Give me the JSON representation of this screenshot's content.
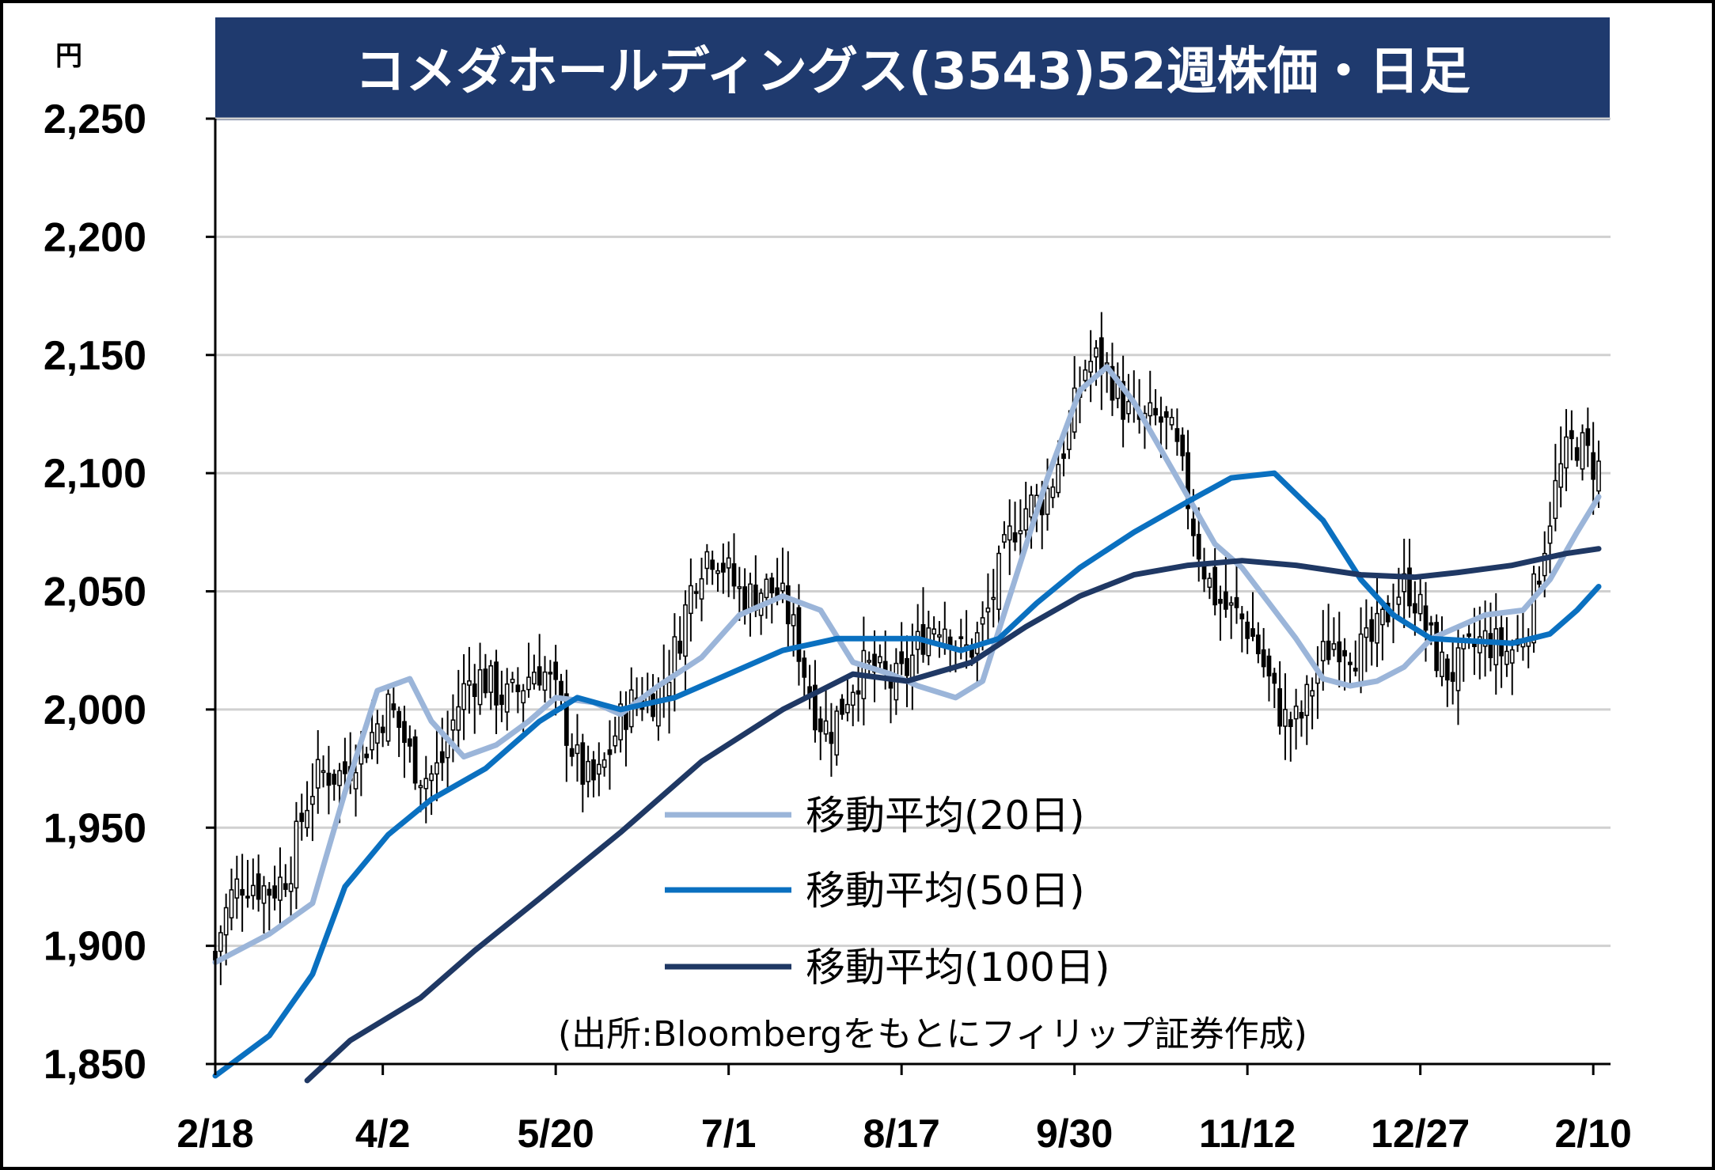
{
  "chart_data": {
    "type": "line",
    "title": "コメダホールディングス(3543)52週株価・日足",
    "unit_label": "円",
    "y_ticks": [
      "2,250",
      "2,200",
      "2,150",
      "2,100",
      "2,050",
      "2,000",
      "1,950",
      "1,900",
      "1,850"
    ],
    "y_tick_values": [
      2250,
      2200,
      2150,
      2100,
      2050,
      2000,
      1950,
      1900,
      1850
    ],
    "ylim": [
      1850,
      2250
    ],
    "x_ticks": [
      "2/18",
      "4/2",
      "5/20",
      "7/1",
      "8/17",
      "9/30",
      "11/12",
      "12/27",
      "2/10"
    ],
    "x_tick_index": [
      0,
      31,
      63,
      95,
      127,
      159,
      191,
      223,
      255
    ],
    "grid": true,
    "legend_position": "center",
    "source": "(出所:Bloombergをもとにフィリップ証券作成)",
    "colors": {
      "ma20": "#9bb5d9",
      "ma50": "#0a70c0",
      "ma100": "#1f3864",
      "title_bg": "#1f3a6e",
      "candle": "#000000"
    },
    "series": [
      {
        "key": "ma20",
        "name": "移動平均(20日)",
        "points": [
          [
            0,
            1893
          ],
          [
            10,
            1905
          ],
          [
            18,
            1918
          ],
          [
            24,
            1965
          ],
          [
            30,
            2008
          ],
          [
            36,
            2013
          ],
          [
            40,
            1995
          ],
          [
            46,
            1980
          ],
          [
            52,
            1985
          ],
          [
            58,
            1995
          ],
          [
            63,
            2005
          ],
          [
            70,
            2003
          ],
          [
            75,
            1998
          ],
          [
            82,
            2010
          ],
          [
            90,
            2022
          ],
          [
            97,
            2040
          ],
          [
            105,
            2048
          ],
          [
            112,
            2042
          ],
          [
            118,
            2020
          ],
          [
            125,
            2015
          ],
          [
            130,
            2010
          ],
          [
            137,
            2005
          ],
          [
            142,
            2012
          ],
          [
            148,
            2055
          ],
          [
            154,
            2098
          ],
          [
            160,
            2135
          ],
          [
            165,
            2145
          ],
          [
            170,
            2130
          ],
          [
            175,
            2110
          ],
          [
            180,
            2090
          ],
          [
            185,
            2070
          ],
          [
            190,
            2060
          ],
          [
            195,
            2045
          ],
          [
            200,
            2030
          ],
          [
            205,
            2013
          ],
          [
            210,
            2010
          ],
          [
            215,
            2012
          ],
          [
            220,
            2018
          ],
          [
            225,
            2030
          ],
          [
            235,
            2040
          ],
          [
            242,
            2042
          ],
          [
            247,
            2055
          ],
          [
            252,
            2075
          ],
          [
            256,
            2090
          ]
        ]
      },
      {
        "key": "ma50",
        "name": "移動平均(50日)",
        "points": [
          [
            0,
            1845
          ],
          [
            10,
            1862
          ],
          [
            18,
            1888
          ],
          [
            24,
            1925
          ],
          [
            32,
            1947
          ],
          [
            40,
            1962
          ],
          [
            50,
            1975
          ],
          [
            60,
            1995
          ],
          [
            67,
            2005
          ],
          [
            75,
            2000
          ],
          [
            85,
            2005
          ],
          [
            95,
            2015
          ],
          [
            105,
            2025
          ],
          [
            115,
            2030
          ],
          [
            125,
            2030
          ],
          [
            130,
            2030
          ],
          [
            138,
            2025
          ],
          [
            145,
            2030
          ],
          [
            152,
            2045
          ],
          [
            160,
            2060
          ],
          [
            170,
            2075
          ],
          [
            180,
            2088
          ],
          [
            188,
            2098
          ],
          [
            196,
            2100
          ],
          [
            205,
            2080
          ],
          [
            212,
            2055
          ],
          [
            218,
            2040
          ],
          [
            225,
            2030
          ],
          [
            240,
            2028
          ],
          [
            247,
            2032
          ],
          [
            252,
            2042
          ],
          [
            256,
            2052
          ]
        ]
      },
      {
        "key": "ma100",
        "name": "移動平均(100日)",
        "points": [
          [
            17,
            1843
          ],
          [
            25,
            1860
          ],
          [
            38,
            1878
          ],
          [
            48,
            1898
          ],
          [
            60,
            1920
          ],
          [
            75,
            1948
          ],
          [
            90,
            1978
          ],
          [
            105,
            2000
          ],
          [
            118,
            2015
          ],
          [
            128,
            2012
          ],
          [
            140,
            2020
          ],
          [
            150,
            2035
          ],
          [
            160,
            2048
          ],
          [
            170,
            2057
          ],
          [
            180,
            2061
          ],
          [
            190,
            2063
          ],
          [
            200,
            2061
          ],
          [
            212,
            2057
          ],
          [
            222,
            2056
          ],
          [
            230,
            2058
          ],
          [
            240,
            2061
          ],
          [
            250,
            2066
          ],
          [
            256,
            2068
          ]
        ]
      }
    ]
  }
}
